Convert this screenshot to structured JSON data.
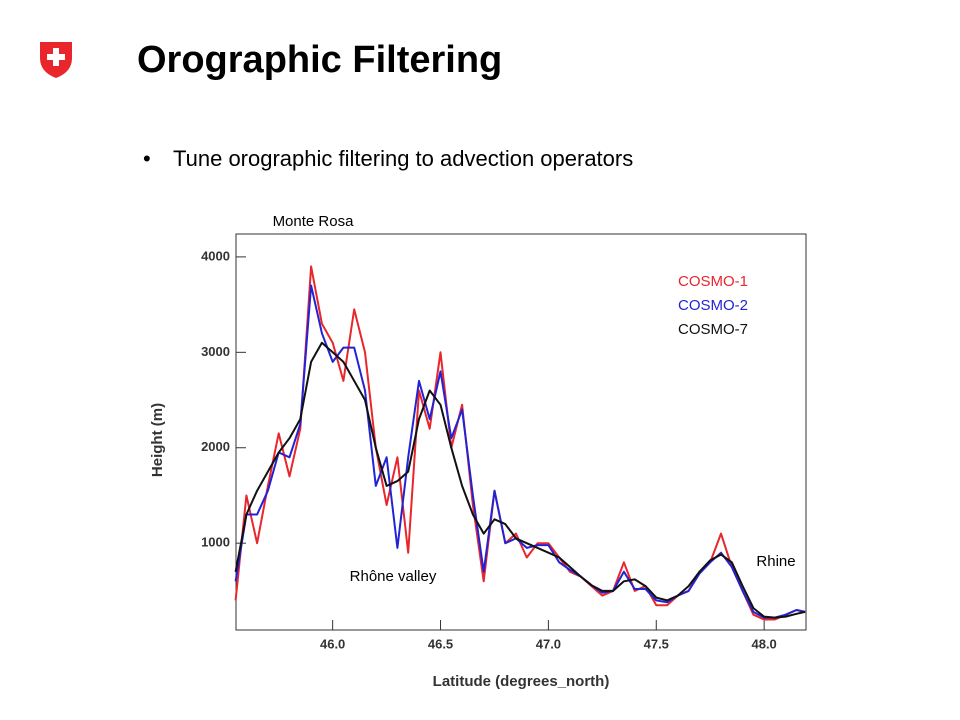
{
  "title": "Orographic Filtering",
  "bullet": "Tune orographic filtering to advection operators",
  "chart_data": {
    "type": "line",
    "xlabel": "Latitude (degrees_north)",
    "ylabel": "Height (m)",
    "annotations": [
      "Monte Rosa",
      "Rhône valley",
      "Rhine"
    ],
    "x": [
      45.55,
      45.6,
      45.65,
      45.7,
      45.75,
      45.8,
      45.85,
      45.9,
      45.95,
      46.0,
      46.05,
      46.1,
      46.15,
      46.2,
      46.25,
      46.3,
      46.35,
      46.4,
      46.45,
      46.5,
      46.55,
      46.6,
      46.65,
      46.7,
      46.75,
      46.8,
      46.85,
      46.9,
      46.95,
      47.0,
      47.05,
      47.1,
      47.15,
      47.2,
      47.25,
      47.3,
      47.35,
      47.4,
      47.45,
      47.5,
      47.55,
      47.6,
      47.65,
      47.7,
      47.75,
      47.8,
      47.85,
      47.9,
      47.95,
      48.0,
      48.05,
      48.1,
      48.15,
      48.19
    ],
    "series": [
      {
        "name": "COSMO-1",
        "color": "#e8262b",
        "values": [
          400,
          1500,
          1000,
          1600,
          2150,
          1700,
          2200,
          3900,
          3300,
          3100,
          2700,
          3450,
          3000,
          2000,
          1400,
          1900,
          900,
          2600,
          2200,
          3000,
          2000,
          2450,
          1400,
          600,
          1550,
          1000,
          1100,
          850,
          1000,
          1000,
          850,
          700,
          650,
          550,
          450,
          500,
          800,
          500,
          550,
          350,
          350,
          450,
          500,
          700,
          800,
          1100,
          750,
          500,
          250,
          200,
          200,
          250,
          300,
          280
        ]
      },
      {
        "name": "COSMO-2",
        "color": "#2323d6",
        "values": [
          600,
          1300,
          1300,
          1550,
          1950,
          1900,
          2250,
          3700,
          3200,
          2900,
          3050,
          3050,
          2600,
          1600,
          1900,
          950,
          1900,
          2700,
          2300,
          2800,
          2100,
          2400,
          1500,
          700,
          1550,
          1000,
          1050,
          950,
          980,
          980,
          800,
          720,
          650,
          560,
          480,
          500,
          700,
          520,
          520,
          400,
          380,
          450,
          500,
          680,
          800,
          900,
          750,
          500,
          280,
          220,
          220,
          250,
          300,
          280
        ]
      },
      {
        "name": "COSMO-7",
        "color": "#111111",
        "values": [
          700,
          1300,
          1550,
          1750,
          1950,
          2100,
          2300,
          2900,
          3100,
          3000,
          2900,
          2700,
          2500,
          2000,
          1600,
          1650,
          1750,
          2300,
          2600,
          2450,
          2000,
          1600,
          1300,
          1100,
          1250,
          1200,
          1050,
          1000,
          950,
          900,
          850,
          750,
          650,
          560,
          500,
          500,
          600,
          620,
          550,
          430,
          400,
          450,
          550,
          700,
          820,
          880,
          800,
          550,
          320,
          230,
          220,
          230,
          260,
          280
        ]
      }
    ],
    "xlim": [
      45.552,
      48.194
    ],
    "ylim": [
      90,
      4240
    ],
    "xticks": [
      {
        "value": 46,
        "label": "46.0"
      },
      46.5,
      {
        "value": 47,
        "label": "47.0"
      },
      47.5,
      {
        "value": 48,
        "label": "48.0"
      }
    ],
    "yticks": [
      1000,
      2000,
      3000,
      4000
    ],
    "legend": "upper right",
    "grid": false
  }
}
